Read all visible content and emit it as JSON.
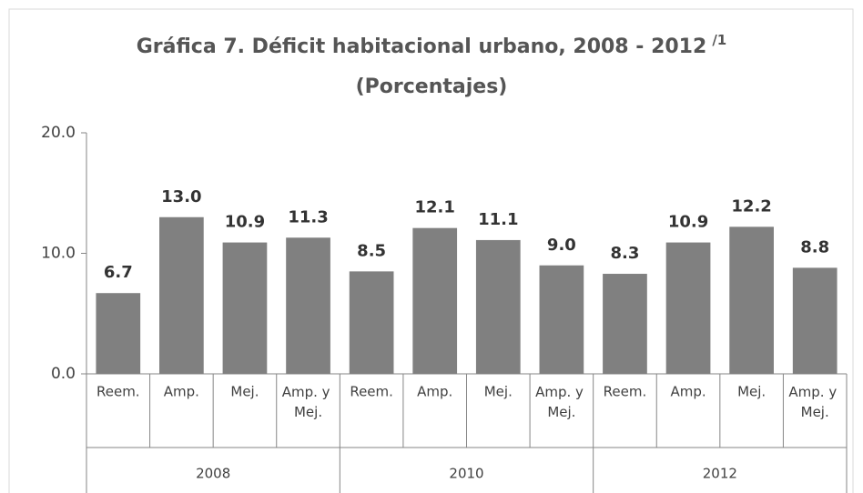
{
  "chart_data": {
    "type": "bar",
    "title": "Gráfica 7. Déficit habitacional urbano, 2008 - 2012",
    "title_note": "/1",
    "subtitle": "(Porcentajes)",
    "groups": [
      "2008",
      "2010",
      "2012"
    ],
    "categories": [
      "Reem.",
      "Amp.",
      "Mej.",
      "Amp. y Mej.",
      "Reem.",
      "Amp.",
      "Mej.",
      "Amp. y Mej.",
      "Reem.",
      "Amp.",
      "Mej.",
      "Amp. y Mej."
    ],
    "values": [
      6.7,
      13.0,
      10.9,
      11.3,
      8.5,
      12.1,
      11.1,
      9.0,
      8.3,
      10.9,
      12.2,
      8.8
    ],
    "value_labels": [
      "6.7",
      "13.0",
      "10.9",
      "11.3",
      "8.5",
      "12.1",
      "11.1",
      "9.0",
      "8.3",
      "10.9",
      "12.2",
      "8.8"
    ],
    "color": "#808080",
    "ylim": [
      0,
      20
    ],
    "yticks": [
      {
        "value": 0,
        "label": "0.0"
      },
      {
        "value": 10,
        "label": "10.0"
      },
      {
        "value": 20,
        "label": "20.0"
      }
    ]
  }
}
